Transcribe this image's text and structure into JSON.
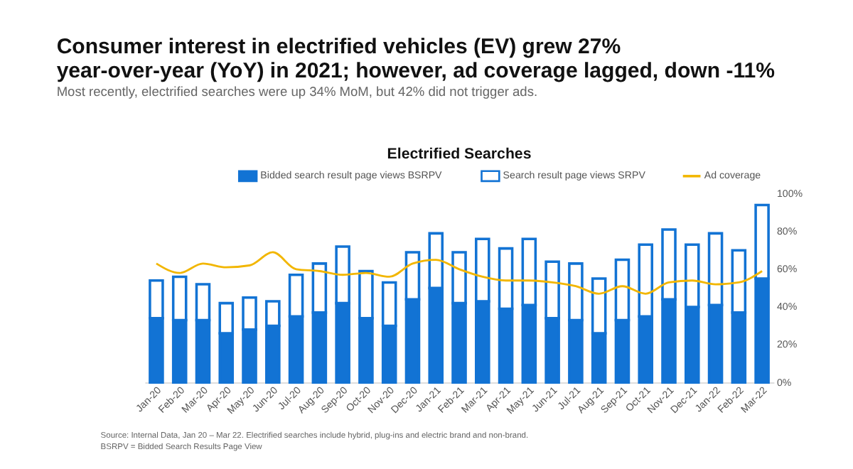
{
  "chart_data": {
    "type": "bar",
    "stacked": true,
    "title": "Consumer interest in electrified vehicles (EV) grew 27% year-over-year (YoY) in 2021; however, ad coverage lagged, down -11%",
    "subtitle": "Most recently, electrified searches were up 34% MoM, but 42% did not trigger ads.",
    "annotations": [
      "Electrified Searches",
      "Source: Internal Data, Jan 20 – Mar 22. Electrified searches include hybrid, plug-ins and electric brand and non-brand.",
      "BSRPV = Bidded Search Results Page View"
    ],
    "categories": [
      "Jan-20",
      "Feb-20",
      "Mar-20",
      "Apr-20",
      "May-20",
      "Jun-20",
      "Jul-20",
      "Aug-20",
      "Sep-20",
      "Oct-20",
      "Nov-20",
      "Dec-20",
      "Jan-21",
      "Feb-21",
      "Mar-21",
      "Apr-21",
      "May-21",
      "Jun-21",
      "Jul-21",
      "Aug-21",
      "Sep-21",
      "Oct-21",
      "Nov-21",
      "Dec-21",
      "Jan-22",
      "Feb-22",
      "Mar-22"
    ],
    "series": [
      {
        "name": "Bidded search result page views  BSRPV",
        "color": "#1273d4",
        "values": [
          34,
          33,
          33,
          26,
          28,
          30,
          35,
          37,
          42,
          34,
          30,
          44,
          50,
          42,
          43,
          39,
          41,
          34,
          33,
          26,
          33,
          35,
          44,
          40,
          41,
          37,
          55
        ]
      },
      {
        "name": "Search result page views  SRPV",
        "color": "#1273d4",
        "values": [
          20,
          23,
          19,
          16,
          17,
          13,
          22,
          26,
          30,
          25,
          23,
          25,
          29,
          27,
          33,
          32,
          35,
          30,
          30,
          29,
          32,
          38,
          37,
          33,
          38,
          33,
          39
        ]
      },
      {
        "name": "Ad coverage",
        "type": "line",
        "color": "#f2b600",
        "values": [
          63,
          58,
          63,
          61,
          62,
          69,
          60,
          59,
          57,
          58,
          56,
          63,
          65,
          60,
          56,
          54,
          54,
          53,
          51,
          47,
          51,
          47,
          53,
          54,
          52,
          53,
          59
        ]
      }
    ],
    "ylim": [
      0,
      100
    ],
    "yticks": [
      {
        "value": 0,
        "label": "0%"
      },
      {
        "value": 20,
        "label": "20%"
      },
      {
        "value": 40,
        "label": "40%"
      },
      {
        "value": 60,
        "label": "60%"
      },
      {
        "value": 80,
        "label": "80%"
      },
      {
        "value": 100,
        "label": "100%"
      }
    ],
    "grid": false,
    "legend": "top"
  }
}
